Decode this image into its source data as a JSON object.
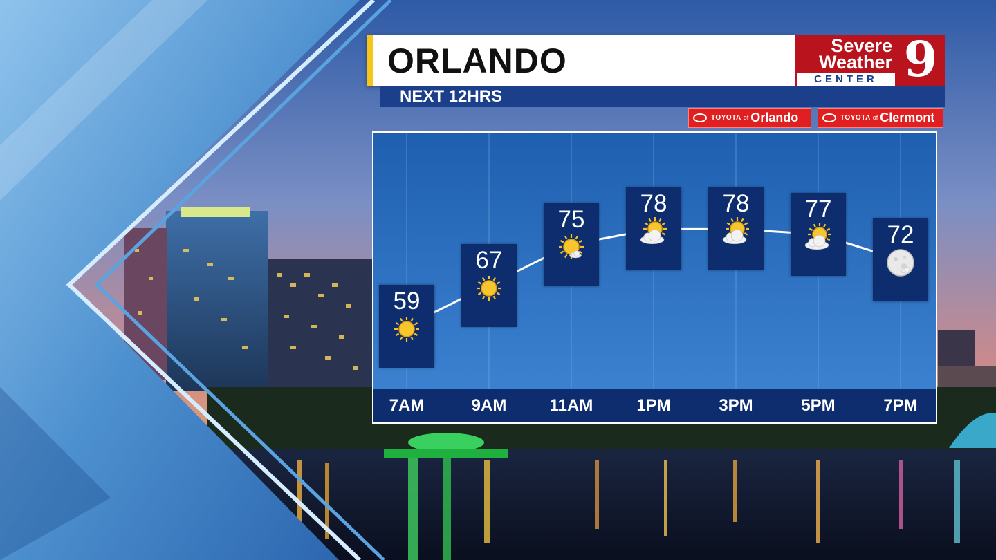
{
  "header": {
    "title": "ORLANDO",
    "subtitle": "NEXT 12HRS"
  },
  "logo": {
    "line1": "Severe",
    "line2": "Weather",
    "line3": "CENTER",
    "number": "9",
    "color": "#b9141d"
  },
  "sponsors": [
    {
      "brand": "TOYOTA",
      "of": "of",
      "city": "Orlando"
    },
    {
      "brand": "TOYOTA",
      "of": "of",
      "city": "Clermont"
    }
  ],
  "colors": {
    "accent": "#f5c518",
    "header_blue": "#1c3f8c",
    "card_blue": "#0d2d6e",
    "sponsor_red": "#e02020"
  },
  "chart_data": {
    "type": "line",
    "x": [
      "7AM",
      "9AM",
      "11AM",
      "1PM",
      "3PM",
      "5PM",
      "7PM"
    ],
    "series": [
      {
        "values": [
          59,
          67,
          75,
          78,
          78,
          77,
          72
        ],
        "conditions": [
          "sunny-icon",
          "sunny-icon",
          "mostly-sunny-icon",
          "partly-cloudy-icon",
          "partly-cloudy-icon",
          "partly-cloudy-icon",
          "clear-night-icon"
        ]
      }
    ],
    "title": "",
    "xlabel": "",
    "ylabel": "",
    "ylim": [
      55,
      82
    ],
    "grid": true,
    "legend": "none"
  }
}
